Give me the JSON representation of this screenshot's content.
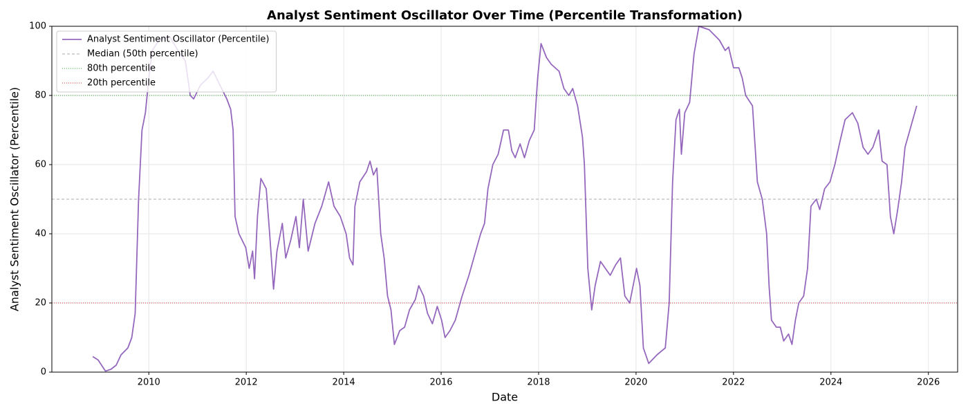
{
  "chart_data": {
    "type": "line",
    "title": "Analyst Sentiment Oscillator Over Time (Percentile Transformation)",
    "xlabel": "Date",
    "ylabel": "Analyst Sentiment Oscillator (Percentile)",
    "x": [
      2008.85,
      2008.96,
      2009.03,
      2009.11,
      2009.22,
      2009.33,
      2009.43,
      2009.57,
      2009.65,
      2009.72,
      2009.79,
      2009.86,
      2009.93,
      2010.0,
      2010.07,
      2010.21,
      2010.43,
      2010.64,
      2010.75,
      2010.85,
      2010.92,
      2011.06,
      2011.21,
      2011.32,
      2011.46,
      2011.6,
      2011.68,
      2011.73,
      2011.77,
      2011.85,
      2011.92,
      2011.99,
      2012.06,
      2012.13,
      2012.17,
      2012.23,
      2012.3,
      2012.41,
      2012.48,
      2012.56,
      2012.63,
      2012.74,
      2012.81,
      2012.91,
      2013.02,
      2013.09,
      2013.17,
      2013.27,
      2013.41,
      2013.55,
      2013.69,
      2013.8,
      2013.93,
      2014.05,
      2014.12,
      2014.19,
      2014.23,
      2014.33,
      2014.47,
      2014.54,
      2014.61,
      2014.68,
      2014.76,
      2014.83,
      2014.9,
      2014.97,
      2015.04,
      2015.15,
      2015.25,
      2015.35,
      2015.47,
      2015.54,
      2015.64,
      2015.72,
      2015.82,
      2015.92,
      2016.01,
      2016.08,
      2016.18,
      2016.29,
      2016.43,
      2016.57,
      2016.71,
      2016.81,
      2016.89,
      2016.96,
      2017.06,
      2017.17,
      2017.28,
      2017.38,
      2017.45,
      2017.52,
      2017.62,
      2017.71,
      2017.81,
      2017.91,
      2017.98,
      2018.05,
      2018.16,
      2018.26,
      2018.42,
      2018.52,
      2018.62,
      2018.7,
      2018.8,
      2018.9,
      2018.94,
      2019.01,
      2019.09,
      2019.16,
      2019.27,
      2019.37,
      2019.47,
      2019.58,
      2019.68,
      2019.77,
      2019.87,
      2019.94,
      2020.01,
      2020.08,
      2020.15,
      2020.26,
      2020.43,
      2020.6,
      2020.68,
      2020.75,
      2020.82,
      2020.89,
      2020.93,
      2021.0,
      2021.1,
      2021.19,
      2021.29,
      2021.5,
      2021.71,
      2021.83,
      2021.9,
      2022.0,
      2022.11,
      2022.18,
      2022.25,
      2022.39,
      2022.49,
      2022.59,
      2022.68,
      2022.73,
      2022.78,
      2022.88,
      2022.96,
      2023.03,
      2023.13,
      2023.2,
      2023.27,
      2023.34,
      2023.44,
      2023.52,
      2023.59,
      2023.7,
      2023.77,
      2023.87,
      2023.98,
      2024.08,
      2024.19,
      2024.29,
      2024.44,
      2024.55,
      2024.66,
      2024.76,
      2024.86,
      2024.98,
      2025.05,
      2025.15,
      2025.22,
      2025.29,
      2025.37,
      2025.45,
      2025.52,
      2025.62,
      2025.76
    ],
    "series": [
      {
        "name": "Analyst Sentiment Oscillator (Percentile)",
        "color": "#9467bd",
        "values": [
          4.5,
          3.5,
          2,
          0.3,
          0.8,
          2,
          5,
          7,
          10,
          17,
          50,
          70,
          75,
          85,
          93,
          96,
          97,
          92,
          90,
          80,
          79,
          83,
          85,
          87,
          83,
          79,
          76,
          70,
          45,
          40,
          38,
          36,
          30,
          35,
          27,
          45,
          56,
          53,
          40,
          24,
          35,
          43,
          33,
          38,
          45,
          36,
          50,
          35,
          43,
          48,
          55,
          48,
          45,
          40,
          33,
          31,
          48,
          55,
          58,
          61,
          57,
          59,
          40,
          33,
          22,
          18,
          8,
          12,
          13,
          18,
          21,
          25,
          22,
          17,
          14,
          19,
          15,
          10,
          12,
          15,
          22,
          28,
          35,
          40,
          43,
          53,
          60,
          63,
          70,
          70,
          64,
          62,
          66,
          62,
          67,
          70,
          85,
          95,
          91,
          89,
          87,
          82,
          80,
          82,
          77,
          68,
          60,
          30,
          18,
          25,
          32,
          30,
          28,
          31,
          33,
          22,
          20,
          25,
          30,
          25,
          7,
          2.5,
          5,
          7,
          20,
          55,
          73,
          76,
          63,
          75,
          78,
          92,
          100,
          99,
          96,
          93,
          94,
          88,
          88,
          85,
          80,
          77,
          55,
          50,
          40,
          25,
          15,
          13,
          13,
          9,
          11,
          8,
          15,
          20,
          22,
          30,
          48,
          50,
          47,
          53,
          55,
          60,
          67,
          73,
          75,
          72,
          65,
          63,
          65,
          70,
          61,
          60,
          45,
          40,
          47,
          55,
          65,
          70,
          77
        ]
      }
    ],
    "reference_lines": [
      {
        "name": "Median (50th percentile)",
        "value": 50,
        "color": "#aaaaaa",
        "dash": "4,3"
      },
      {
        "name": "80th percentile",
        "value": 80,
        "color": "#2ca02c",
        "dash": "1,2"
      },
      {
        "name": "20th percentile",
        "value": 20,
        "color": "#d62728",
        "dash": "1,2"
      }
    ],
    "xlim": [
      2008.01,
      2026.6
    ],
    "ylim": [
      0,
      100
    ],
    "xticks": [
      2010,
      2012,
      2014,
      2016,
      2018,
      2020,
      2022,
      2024,
      2026
    ],
    "yticks": [
      0,
      20,
      40,
      60,
      80,
      100
    ],
    "grid": true,
    "legend": "upper left"
  }
}
